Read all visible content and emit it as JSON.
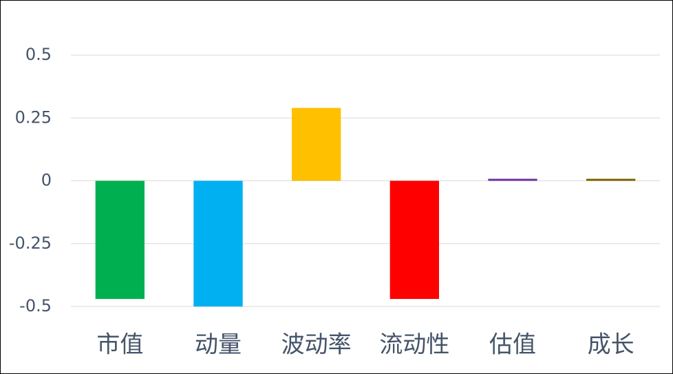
{
  "chart_data": {
    "type": "bar",
    "categories": [
      "市值",
      "动量",
      "波动率",
      "流动性",
      "估值",
      "成长"
    ],
    "values": [
      -0.47,
      -0.5,
      0.29,
      -0.47,
      0.008,
      0.008
    ],
    "colors": [
      "#00b050",
      "#00b0f0",
      "#ffc000",
      "#ff0000",
      "#7030a0",
      "#7f6000"
    ],
    "ylim": [
      -0.5,
      0.5
    ],
    "yticks": [
      0.5,
      0.25,
      0,
      -0.25,
      -0.5
    ],
    "grid": true
  }
}
